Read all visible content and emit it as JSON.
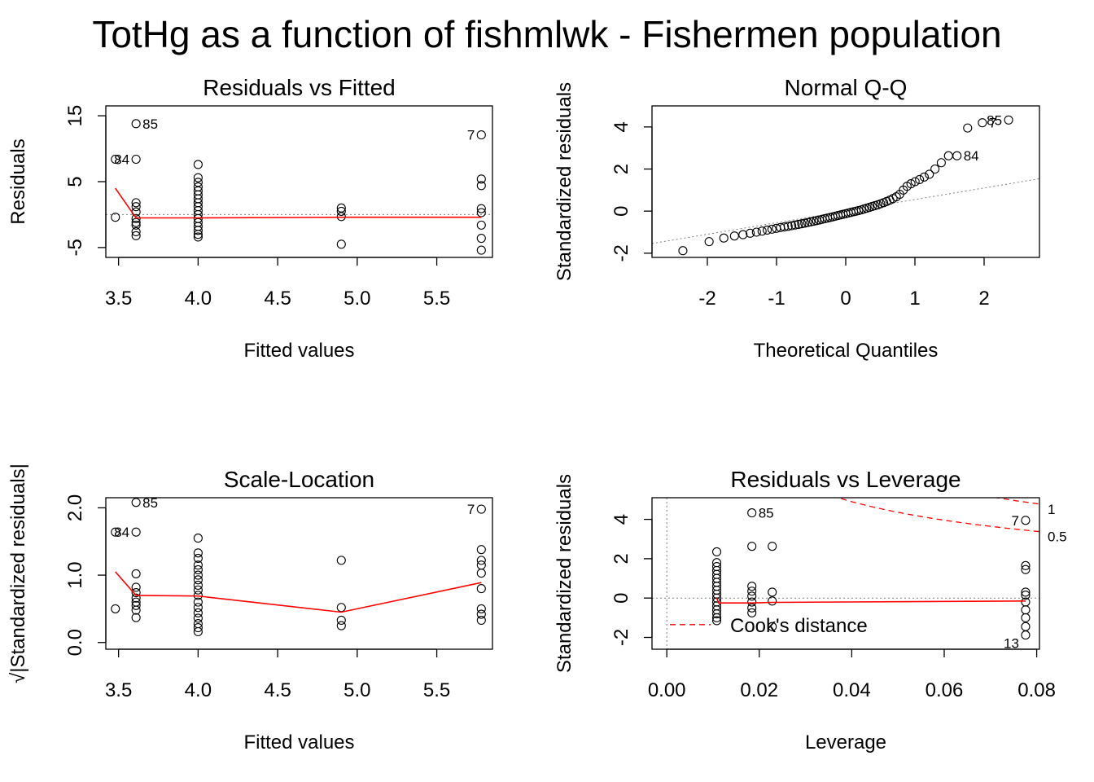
{
  "figure": {
    "title": "TotHg as a function of fishmlwk - Fishermen population"
  },
  "colors": {
    "points": "#000000",
    "smoother": "#ff0000",
    "reference": "#808080",
    "cooks": "#ff0000"
  },
  "chart_data": [
    {
      "type": "scatter",
      "title": "Residuals vs Fitted",
      "xlabel": "Fitted values",
      "ylabel": "Residuals",
      "xlim": [
        3.42,
        5.85
      ],
      "ylim": [
        -6.5,
        16.5
      ],
      "xticks": [
        "3.5",
        "4.0",
        "4.5",
        "5.0",
        "5.5"
      ],
      "yticks": [
        "-5",
        "5",
        "15"
      ],
      "points": [
        [
          3.48,
          8.4
        ],
        [
          3.48,
          -0.4
        ],
        [
          3.61,
          13.8
        ],
        [
          3.61,
          8.4
        ],
        [
          3.61,
          1.8
        ],
        [
          3.61,
          1.2
        ],
        [
          3.61,
          0.4
        ],
        [
          3.61,
          -0.6
        ],
        [
          3.61,
          -1.2
        ],
        [
          3.61,
          -1.6
        ],
        [
          3.61,
          -2.6
        ],
        [
          3.61,
          -3.2
        ],
        [
          4.0,
          7.6
        ],
        [
          4.0,
          5.6
        ],
        [
          4.0,
          4.9
        ],
        [
          4.0,
          4.2
        ],
        [
          4.0,
          3.6
        ],
        [
          4.0,
          3.0
        ],
        [
          4.0,
          2.4
        ],
        [
          4.0,
          1.8
        ],
        [
          4.0,
          1.2
        ],
        [
          4.0,
          0.6
        ],
        [
          4.0,
          0.0
        ],
        [
          4.0,
          -0.6
        ],
        [
          4.0,
          -1.2
        ],
        [
          4.0,
          -1.8
        ],
        [
          4.0,
          -2.4
        ],
        [
          4.0,
          -3.0
        ],
        [
          4.0,
          -3.4
        ],
        [
          4.9,
          1.0
        ],
        [
          4.9,
          0.5
        ],
        [
          4.9,
          -0.3
        ],
        [
          4.9,
          -4.5
        ],
        [
          5.78,
          12.1
        ],
        [
          5.78,
          5.4
        ],
        [
          5.78,
          4.4
        ],
        [
          5.78,
          0.9
        ],
        [
          5.78,
          0.3
        ],
        [
          5.78,
          -1.6
        ],
        [
          5.78,
          -3.6
        ],
        [
          5.78,
          -5.4
        ]
      ],
      "labels": [
        {
          "text": "85",
          "x": 3.61,
          "y": 13.8,
          "side": "right"
        },
        {
          "text": "84",
          "x": 3.61,
          "y": 8.4,
          "side": "left"
        },
        {
          "text": "7",
          "x": 5.78,
          "y": 12.1,
          "side": "left"
        }
      ],
      "smoother": [
        [
          3.48,
          4.0
        ],
        [
          3.61,
          -0.5
        ],
        [
          4.0,
          -0.5
        ],
        [
          4.9,
          -0.4
        ],
        [
          5.78,
          -0.4
        ]
      ],
      "hline": 0
    },
    {
      "type": "scatter",
      "title": "Normal Q-Q",
      "xlabel": "Theoretical Quantiles",
      "ylabel": "Standardized residuals",
      "xlim": [
        -2.8,
        2.8
      ],
      "ylim": [
        -2.2,
        5.0
      ],
      "xticks": [
        "-2",
        "-1",
        "0",
        "1",
        "2"
      ],
      "yticks": [
        "-2",
        "0",
        "2",
        "4"
      ],
      "qq_sorted": [
        -1.88,
        -1.45,
        -1.28,
        -1.18,
        -1.12,
        -1.05,
        -1.0,
        -0.95,
        -0.9,
        -0.86,
        -0.82,
        -0.78,
        -0.75,
        -0.72,
        -0.69,
        -0.66,
        -0.63,
        -0.6,
        -0.57,
        -0.54,
        -0.51,
        -0.48,
        -0.45,
        -0.42,
        -0.39,
        -0.36,
        -0.33,
        -0.3,
        -0.27,
        -0.24,
        -0.21,
        -0.18,
        -0.15,
        -0.12,
        -0.09,
        -0.06,
        -0.03,
        0.0,
        0.03,
        0.06,
        0.1,
        0.14,
        0.18,
        0.22,
        0.26,
        0.3,
        0.35,
        0.4,
        0.46,
        0.52,
        0.6,
        0.68,
        0.8,
        1.0,
        1.18,
        1.3,
        1.4,
        1.5,
        1.62,
        1.75,
        2.0,
        2.3,
        2.63,
        2.63,
        3.95,
        4.2,
        4.33
      ],
      "labels": [
        {
          "text": "85",
          "index": 66,
          "side": "left"
        },
        {
          "text": "7",
          "index": 65,
          "side": "right"
        },
        {
          "text": "84",
          "index": 63,
          "side": "right"
        }
      ],
      "ref_line": {
        "intercept": 0.0,
        "slope": 0.55
      }
    },
    {
      "type": "scatter",
      "title": "Scale-Location",
      "xlabel": "Fitted values",
      "ylabel": "√|Standardized residuals|",
      "xlim": [
        3.42,
        5.85
      ],
      "ylim": [
        -0.1,
        2.15
      ],
      "xticks": [
        "3.5",
        "4.0",
        "4.5",
        "5.0",
        "5.5"
      ],
      "yticks": [
        "0.0",
        "1.0",
        "2.0"
      ],
      "points": [
        [
          3.48,
          1.64
        ],
        [
          3.48,
          0.5
        ],
        [
          3.61,
          2.08
        ],
        [
          3.61,
          1.64
        ],
        [
          3.61,
          1.02
        ],
        [
          3.61,
          0.82
        ],
        [
          3.61,
          0.74
        ],
        [
          3.61,
          0.66
        ],
        [
          3.61,
          0.6
        ],
        [
          3.61,
          0.55
        ],
        [
          3.61,
          0.48
        ],
        [
          3.61,
          0.37
        ],
        [
          4.0,
          1.55
        ],
        [
          4.0,
          1.33
        ],
        [
          4.0,
          1.25
        ],
        [
          4.0,
          1.15
        ],
        [
          4.0,
          1.08
        ],
        [
          4.0,
          1.0
        ],
        [
          4.0,
          0.93
        ],
        [
          4.0,
          0.85
        ],
        [
          4.0,
          0.78
        ],
        [
          4.0,
          0.7
        ],
        [
          4.0,
          0.6
        ],
        [
          4.0,
          0.52
        ],
        [
          4.0,
          0.44
        ],
        [
          4.0,
          0.36
        ],
        [
          4.0,
          0.28
        ],
        [
          4.0,
          0.22
        ],
        [
          4.0,
          0.16
        ],
        [
          4.9,
          1.22
        ],
        [
          4.9,
          0.52
        ],
        [
          4.9,
          0.33
        ],
        [
          4.9,
          0.25
        ],
        [
          5.78,
          1.98
        ],
        [
          5.78,
          1.38
        ],
        [
          5.78,
          1.22
        ],
        [
          5.78,
          1.15
        ],
        [
          5.78,
          1.03
        ],
        [
          5.78,
          0.8
        ],
        [
          5.78,
          0.5
        ],
        [
          5.78,
          0.42
        ],
        [
          5.78,
          0.33
        ]
      ],
      "labels": [
        {
          "text": "85",
          "x": 3.61,
          "y": 2.08,
          "side": "right"
        },
        {
          "text": "84",
          "x": 3.61,
          "y": 1.64,
          "side": "left"
        },
        {
          "text": "7",
          "x": 5.78,
          "y": 1.98,
          "side": "left"
        }
      ],
      "smoother": [
        [
          3.48,
          1.05
        ],
        [
          3.61,
          0.7
        ],
        [
          4.0,
          0.69
        ],
        [
          4.9,
          0.45
        ],
        [
          5.78,
          0.89
        ]
      ]
    },
    {
      "type": "scatter",
      "title": "Residuals vs Leverage",
      "xlabel": "Leverage",
      "ylabel": "Standardized residuals",
      "xlim": [
        -0.0032,
        0.0806
      ],
      "ylim": [
        -2.6,
        5.1
      ],
      "xticks": [
        "0.00",
        "0.02",
        "0.04",
        "0.06",
        "0.08"
      ],
      "yticks": [
        "-2",
        "0",
        "2",
        "4"
      ],
      "points": [
        [
          0.0108,
          2.35
        ],
        [
          0.0108,
          1.8
        ],
        [
          0.0108,
          1.6
        ],
        [
          0.0108,
          1.4
        ],
        [
          0.0108,
          1.2
        ],
        [
          0.0108,
          1.0
        ],
        [
          0.0108,
          0.8
        ],
        [
          0.0108,
          0.6
        ],
        [
          0.0108,
          0.4
        ],
        [
          0.0108,
          0.2
        ],
        [
          0.0108,
          0.0
        ],
        [
          0.0108,
          -0.2
        ],
        [
          0.0108,
          -0.4
        ],
        [
          0.0108,
          -0.6
        ],
        [
          0.0108,
          -0.8
        ],
        [
          0.0108,
          -1.0
        ],
        [
          0.0108,
          -1.15
        ],
        [
          0.0184,
          4.33
        ],
        [
          0.0184,
          2.63
        ],
        [
          0.0184,
          0.6
        ],
        [
          0.0184,
          0.35
        ],
        [
          0.0184,
          0.1
        ],
        [
          0.0184,
          -0.2
        ],
        [
          0.0184,
          -0.5
        ],
        [
          0.0184,
          -0.75
        ],
        [
          0.0228,
          2.63
        ],
        [
          0.0228,
          0.3
        ],
        [
          0.0228,
          -0.15
        ],
        [
          0.0228,
          -1.45
        ],
        [
          0.0776,
          3.95
        ],
        [
          0.0776,
          1.65
        ],
        [
          0.0776,
          1.45
        ],
        [
          0.0776,
          0.3
        ],
        [
          0.0776,
          0.15
        ],
        [
          0.0776,
          -0.2
        ],
        [
          0.0776,
          -0.6
        ],
        [
          0.0776,
          -1.0
        ],
        [
          0.0776,
          -1.45
        ],
        [
          0.0776,
          -1.88
        ]
      ],
      "labels": [
        {
          "text": "85",
          "x": 0.0184,
          "y": 4.33,
          "side": "right"
        },
        {
          "text": "7",
          "x": 0.0776,
          "y": 3.95,
          "side": "left"
        },
        {
          "text": "13",
          "x": 0.0776,
          "y": -1.88,
          "side": "belowleft"
        }
      ],
      "smoother": [
        [
          0.0108,
          0.0
        ],
        [
          0.0112,
          -0.25
        ],
        [
          0.0184,
          -0.25
        ],
        [
          0.0228,
          -0.22
        ],
        [
          0.0776,
          -0.15
        ]
      ],
      "cooks_levels": [
        "0.5",
        "1"
      ],
      "cooks_legend": "Cook's distance",
      "p": 2
    }
  ]
}
